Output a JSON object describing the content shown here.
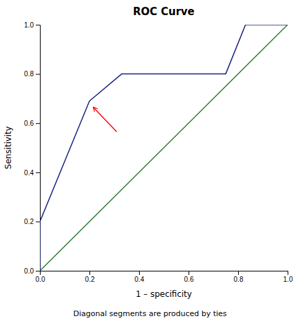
{
  "chart_data": {
    "type": "line",
    "title": "ROC Curve",
    "x_label": "1 – specificity",
    "y_label": "Sensitivity",
    "footnote": "Diagonal segments are produced by ties",
    "series": [
      {
        "color": "#2e7d32",
        "x": [
          0.0,
          1.0
        ],
        "values": [
          0.0,
          1.0
        ]
      },
      {
        "color": "#1a237e",
        "x": [
          0.0,
          0.0,
          0.2,
          0.33,
          0.75,
          0.83,
          1.0
        ],
        "values": [
          0.0,
          0.2,
          0.69,
          0.8,
          0.8,
          1.0,
          1.0
        ]
      }
    ],
    "annotations": [
      {
        "x_from": 0.31,
        "y_from": 0.565,
        "x": 0.215,
        "y": 0.665,
        "color": "red"
      }
    ],
    "xlim": [
      0.0,
      1.0
    ],
    "ylim": [
      0.0,
      1.0
    ],
    "xticks": [
      {
        "value": 0.0,
        "label": "0.0"
      },
      0.2,
      0.4,
      0.6,
      0.8,
      {
        "value": 1.0,
        "label": "1.0"
      }
    ],
    "yticks": [
      {
        "value": 0.0,
        "label": "0.0"
      },
      0.2,
      0.4,
      0.6,
      0.8,
      {
        "value": 1.0,
        "label": "1.0"
      }
    ]
  }
}
